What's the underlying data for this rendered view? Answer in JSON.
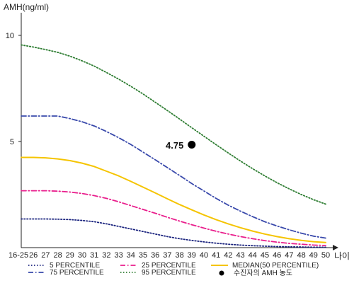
{
  "chart_data": {
    "type": "line",
    "ylabel": "AMH(ng/ml)",
    "xlabel": "나이",
    "categories": [
      "16-25",
      "26",
      "27",
      "28",
      "29",
      "30",
      "31",
      "32",
      "33",
      "34",
      "35",
      "36",
      "37",
      "38",
      "39",
      "40",
      "41",
      "42",
      "43",
      "44",
      "45",
      "46",
      "47",
      "48",
      "49",
      "50"
    ],
    "y_ticks": [
      "10",
      "5"
    ],
    "ylim": [
      0,
      10.5
    ],
    "grid": false,
    "series": [
      {
        "name": "5 PERCENTILE",
        "color": "#1a237e",
        "style": "dotted",
        "values": [
          1.35,
          1.35,
          1.35,
          1.34,
          1.32,
          1.28,
          1.22,
          1.12,
          1.0,
          0.88,
          0.76,
          0.64,
          0.52,
          0.42,
          0.34,
          0.27,
          0.21,
          0.16,
          0.12,
          0.09,
          0.07,
          0.05,
          0.04,
          0.03,
          0.02,
          0.02
        ]
      },
      {
        "name": "25 PERCENTILE",
        "color": "#e91e8c",
        "style": "dashdot",
        "values": [
          2.68,
          2.68,
          2.68,
          2.66,
          2.62,
          2.55,
          2.45,
          2.32,
          2.16,
          1.98,
          1.8,
          1.62,
          1.43,
          1.25,
          1.08,
          0.92,
          0.77,
          0.64,
          0.52,
          0.42,
          0.33,
          0.26,
          0.2,
          0.16,
          0.12,
          0.1
        ]
      },
      {
        "name": "MEDIAN(50 PERCENTILE)",
        "color": "#f5c400",
        "style": "solid",
        "values": [
          4.25,
          4.25,
          4.23,
          4.18,
          4.1,
          3.98,
          3.82,
          3.6,
          3.38,
          3.12,
          2.85,
          2.58,
          2.3,
          2.03,
          1.78,
          1.54,
          1.32,
          1.12,
          0.94,
          0.78,
          0.64,
          0.52,
          0.42,
          0.34,
          0.28,
          0.24
        ]
      },
      {
        "name": "75 PERCENTILE",
        "color": "#3949ab",
        "style": "dashdot",
        "values": [
          6.2,
          6.2,
          6.2,
          6.2,
          6.08,
          5.93,
          5.73,
          5.47,
          5.18,
          4.86,
          4.5,
          4.14,
          3.77,
          3.4,
          3.02,
          2.67,
          2.32,
          2.0,
          1.72,
          1.46,
          1.22,
          1.02,
          0.84,
          0.68,
          0.54,
          0.45
        ]
      },
      {
        "name": "95 PERCENTILE",
        "color": "#2e7d32",
        "style": "dotted",
        "values": [
          9.55,
          9.45,
          9.33,
          9.2,
          9.02,
          8.8,
          8.55,
          8.25,
          7.94,
          7.6,
          7.24,
          6.85,
          6.46,
          6.06,
          5.65,
          5.25,
          4.85,
          4.46,
          4.08,
          3.72,
          3.38,
          3.06,
          2.77,
          2.5,
          2.26,
          2.05
        ]
      }
    ],
    "annotation": {
      "label": "4.75",
      "x": "39",
      "y": 4.85
    },
    "point_legend": "수진자의 AMH 농도",
    "legend_position": "bottom"
  }
}
